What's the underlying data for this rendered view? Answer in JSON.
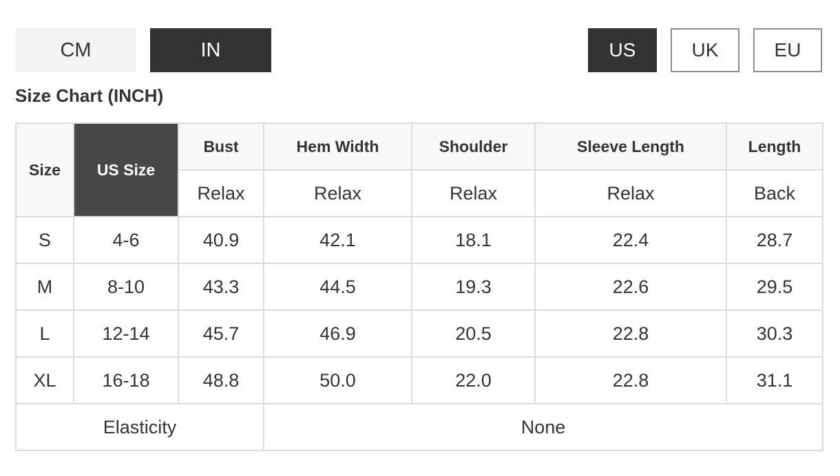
{
  "unit_toggle": {
    "options": [
      "CM",
      "IN"
    ],
    "selected": "IN"
  },
  "region_toggle": {
    "options": [
      "US",
      "UK",
      "EU"
    ],
    "selected": "US"
  },
  "chart_title": "Size Chart (INCH)",
  "table": {
    "header": {
      "size": "Size",
      "us_size": "US Size",
      "columns": [
        {
          "name": "Bust",
          "sub": "Relax"
        },
        {
          "name": "Hem Width",
          "sub": "Relax"
        },
        {
          "name": "Shoulder",
          "sub": "Relax"
        },
        {
          "name": "Sleeve Length",
          "sub": "Relax"
        },
        {
          "name": "Length",
          "sub": "Back"
        }
      ]
    },
    "rows": [
      [
        "S",
        "4-6",
        "40.9",
        "42.1",
        "18.1",
        "22.4",
        "28.7"
      ],
      [
        "M",
        "8-10",
        "43.3",
        "44.5",
        "19.3",
        "22.6",
        "29.5"
      ],
      [
        "L",
        "12-14",
        "45.7",
        "46.9",
        "20.5",
        "22.8",
        "30.3"
      ],
      [
        "XL",
        "16-18",
        "48.8",
        "50.0",
        "22.0",
        "22.8",
        "31.1"
      ]
    ],
    "footer": {
      "label": "Elasticity",
      "value": "None"
    }
  }
}
